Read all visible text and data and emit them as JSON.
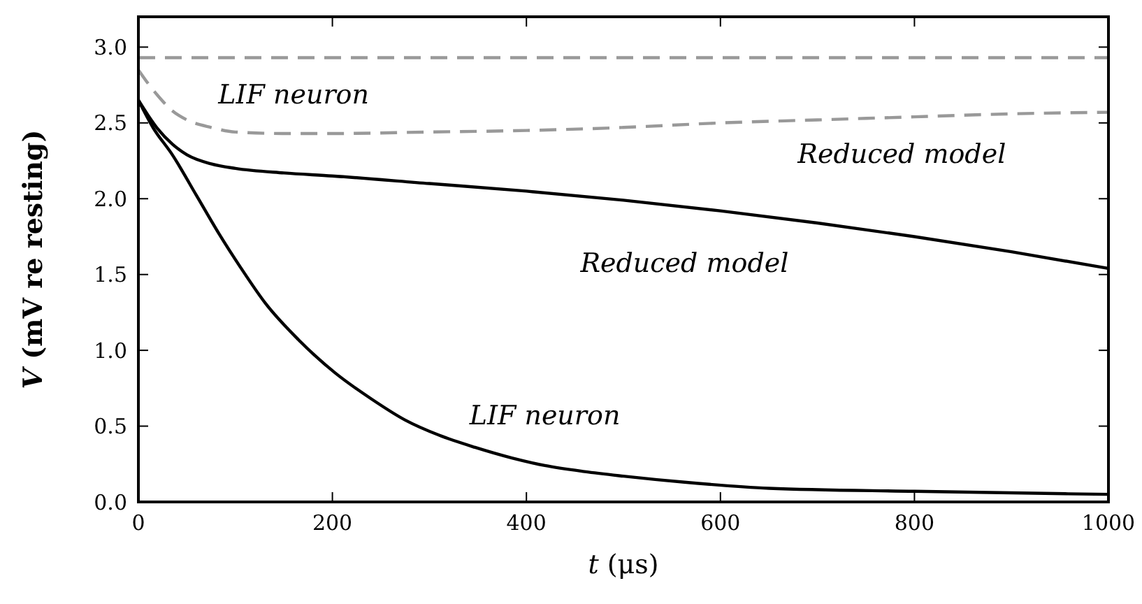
{
  "chart_data": {
    "type": "line",
    "xlabel": "t (μs)",
    "ylabel": "V (mV re resting)",
    "xlim": [
      0,
      1000
    ],
    "ylim": [
      0,
      3.2
    ],
    "xticks": [
      0,
      200,
      400,
      600,
      800,
      1000
    ],
    "yticks": [
      {
        "value": 0,
        "label": "0.0"
      },
      {
        "value": 0.5,
        "label": "0.5"
      },
      {
        "value": 1,
        "label": "1.0"
      },
      {
        "value": 1.5,
        "label": "1.5"
      },
      {
        "value": 2,
        "label": "2.0"
      },
      {
        "value": 2.5,
        "label": "2.5"
      },
      {
        "value": 3,
        "label": "3.0"
      }
    ],
    "marker": "none",
    "series": [
      {
        "name": "LIF neuron",
        "color": "#999999",
        "line_style": "dashed",
        "x": [
          0,
          1000
        ],
        "values": [
          2.93,
          2.93
        ]
      },
      {
        "name": "Reduced model",
        "color": "#999999",
        "line_style": "dashed",
        "x": [
          0,
          10,
          20,
          35,
          50,
          75,
          100,
          150,
          200,
          300,
          400,
          500,
          600,
          700,
          800,
          900,
          1000
        ],
        "values": [
          2.85,
          2.76,
          2.68,
          2.58,
          2.52,
          2.47,
          2.44,
          2.43,
          2.43,
          2.44,
          2.45,
          2.47,
          2.5,
          2.52,
          2.54,
          2.56,
          2.57
        ]
      },
      {
        "name": "Reduced model",
        "color": "#000000",
        "line_style": "solid",
        "x": [
          0,
          10,
          20,
          35,
          50,
          75,
          100,
          150,
          200,
          300,
          400,
          500,
          600,
          700,
          800,
          900,
          1000
        ],
        "values": [
          2.65,
          2.55,
          2.46,
          2.36,
          2.29,
          2.23,
          2.2,
          2.17,
          2.15,
          2.1,
          2.05,
          1.99,
          1.92,
          1.84,
          1.75,
          1.65,
          1.54
        ]
      },
      {
        "name": "LIF neuron",
        "color": "#000000",
        "line_style": "solid",
        "x": [
          0,
          15,
          35,
          60,
          83,
          105,
          131,
          165,
          203,
          240,
          275,
          310,
          347,
          385,
          419,
          460,
          500,
          563,
          650,
          800,
          1000
        ],
        "values": [
          2.65,
          2.47,
          2.29,
          2.02,
          1.77,
          1.55,
          1.31,
          1.07,
          0.85,
          0.68,
          0.54,
          0.44,
          0.36,
          0.29,
          0.24,
          0.2,
          0.17,
          0.13,
          0.09,
          0.07,
          0.05
        ]
      }
    ]
  }
}
